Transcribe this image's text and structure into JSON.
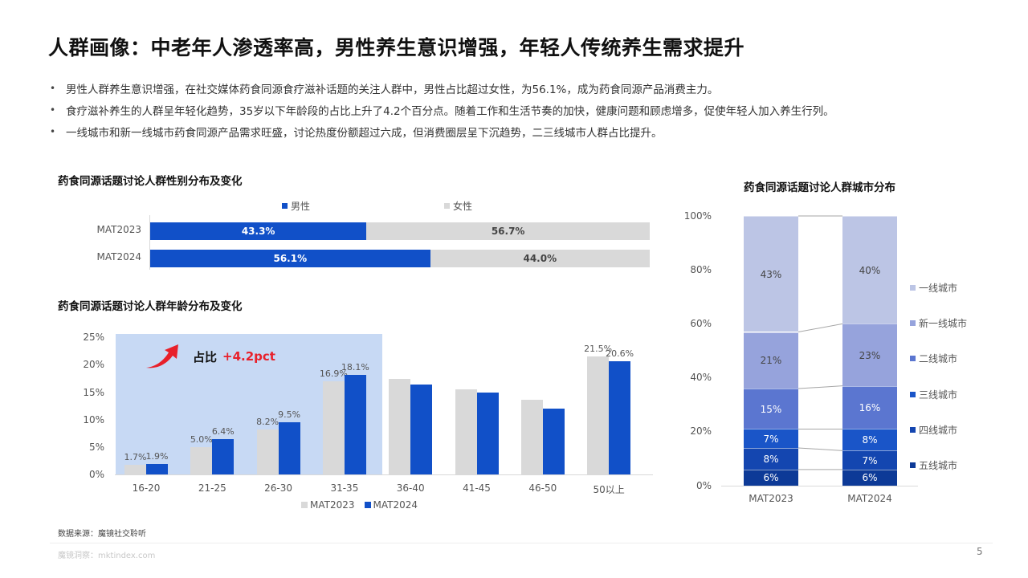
{
  "title": "人群画像：中老年人渗透率高，男性养生意识增强，年轻人传统养生需求提升",
  "bullets": [
    "男性人群养生意识增强，在社交媒体药食同源食疗滋补话题的关注人群中，男性占比超过女性，为56.1%，成为药食同源产品消费主力。",
    "食疗滋补养生的人群呈年轻化趋势，35岁以下年龄段的占比上升了4.2个百分点。随着工作和生活节奏的加快，健康问题和顾虑增多，促使年轻人加入养生行列。",
    "一线城市和新一线城市药食同源产品需求旺盛，讨论热度份额超过六成，但消费圈层呈下沉趋势，二三线城市人群占比提升。"
  ],
  "bullet_glyph": "•",
  "colors": {
    "male": "#1150c8",
    "female": "#d9d9d9",
    "highlight": "#c7d9f4",
    "accent_red": "#e8202a",
    "city": [
      "#bcc5e5",
      "#96a3dc",
      "#5b76d0",
      "#1a55c8",
      "#1446b0",
      "#0d3a97"
    ]
  },
  "callout": {
    "icon": "red-curved-arrow-up",
    "label": "占比",
    "value": "+4.2pct"
  },
  "chart_data": [
    {
      "type": "bar",
      "orientation": "horizontal-stacked-100",
      "title": "药食同源话题讨论人群性别分布及变化",
      "categories": [
        "MAT2023",
        "MAT2024"
      ],
      "series": [
        {
          "name": "男性",
          "values": [
            43.3,
            56.1
          ],
          "labels": [
            "43.3%",
            "56.1%"
          ]
        },
        {
          "name": "女性",
          "values": [
            56.7,
            44.0
          ],
          "labels": [
            "56.7%",
            "44.0%"
          ]
        }
      ],
      "legend_position": "top"
    },
    {
      "type": "bar",
      "title": "药食同源话题讨论人群年龄分布及变化",
      "categories": [
        "16-20",
        "21-25",
        "26-30",
        "31-35",
        "36-40",
        "41-45",
        "46-50",
        "50以上"
      ],
      "series": [
        {
          "name": "MAT2023",
          "values": [
            1.7,
            5.0,
            8.2,
            16.9,
            17.4,
            15.5,
            13.6,
            21.5
          ],
          "labels": [
            "1.7%",
            "5.0%",
            "8.2%",
            "16.9%",
            "",
            "",
            "",
            "21.5%"
          ]
        },
        {
          "name": "MAT2024",
          "values": [
            1.9,
            6.4,
            9.5,
            18.1,
            16.4,
            14.9,
            12.0,
            20.6
          ],
          "labels": [
            "1.9%",
            "6.4%",
            "9.5%",
            "18.1%",
            "",
            "",
            "",
            "20.6%"
          ]
        }
      ],
      "yticks": [
        "0%",
        "5%",
        "10%",
        "15%",
        "20%",
        "25%"
      ],
      "ylim": [
        0,
        25
      ],
      "xlabel": "",
      "ylabel": "",
      "grid": false,
      "legend_position": "bottom",
      "highlight_range": [
        "16-20",
        "31-35"
      ],
      "annotation": "占比 +4.2pct"
    },
    {
      "type": "bar",
      "orientation": "vertical-stacked-100",
      "title": "药食同源话题讨论人群城市分布",
      "categories": [
        "MAT2023",
        "MAT2024"
      ],
      "series": [
        {
          "name": "五线城市",
          "values": [
            6,
            6
          ]
        },
        {
          "name": "四线城市",
          "values": [
            8,
            7
          ]
        },
        {
          "name": "三线城市",
          "values": [
            7,
            8
          ]
        },
        {
          "name": "二线城市",
          "values": [
            15,
            16
          ]
        },
        {
          "name": "新一线城市",
          "values": [
            21,
            23
          ]
        },
        {
          "name": "一线城市",
          "values": [
            43,
            40
          ]
        }
      ],
      "yticks": [
        "0%",
        "20%",
        "40%",
        "60%",
        "80%",
        "100%"
      ],
      "ylim": [
        0,
        100
      ],
      "legend_position": "right"
    }
  ],
  "gender": {
    "title": "药食同源话题讨论人群性别分布及变化",
    "legend": [
      "男性",
      "女性"
    ],
    "rows": [
      {
        "label": "MAT2023",
        "male": 43.3,
        "male_label": "43.3%",
        "female": 56.7,
        "female_label": "56.7%"
      },
      {
        "label": "MAT2024",
        "male": 56.1,
        "male_label": "56.1%",
        "female": 44.0,
        "female_label": "44.0%"
      }
    ]
  },
  "age": {
    "title": "药食同源话题讨论人群年龄分布及变化",
    "yticks": [
      "25%",
      "20%",
      "15%",
      "10%",
      "5%",
      "0%"
    ],
    "categories": [
      "16-20",
      "21-25",
      "26-30",
      "31-35",
      "36-40",
      "41-45",
      "46-50",
      "50以上"
    ],
    "legend": [
      "MAT2023",
      "MAT2024"
    ]
  },
  "city": {
    "title": "药食同源话题讨论人群城市分布",
    "yticks": [
      "100%",
      "80%",
      "60%",
      "40%",
      "20%",
      "0%"
    ],
    "categories": [
      "MAT2023",
      "MAT2024"
    ],
    "legend": [
      "一线城市",
      "新一线城市",
      "二线城市",
      "三线城市",
      "四线城市",
      "五线城市"
    ],
    "labels": {
      "MAT2023": [
        "43%",
        "21%",
        "15%",
        "7%",
        "8%",
        "6%"
      ],
      "MAT2024": [
        "40%",
        "23%",
        "16%",
        "8%",
        "7%",
        "6%"
      ]
    }
  },
  "source": "数据来源：魔镜社交聆听",
  "footer": {
    "brand": "魔镜洞察：mktindex.com",
    "page": "5"
  }
}
